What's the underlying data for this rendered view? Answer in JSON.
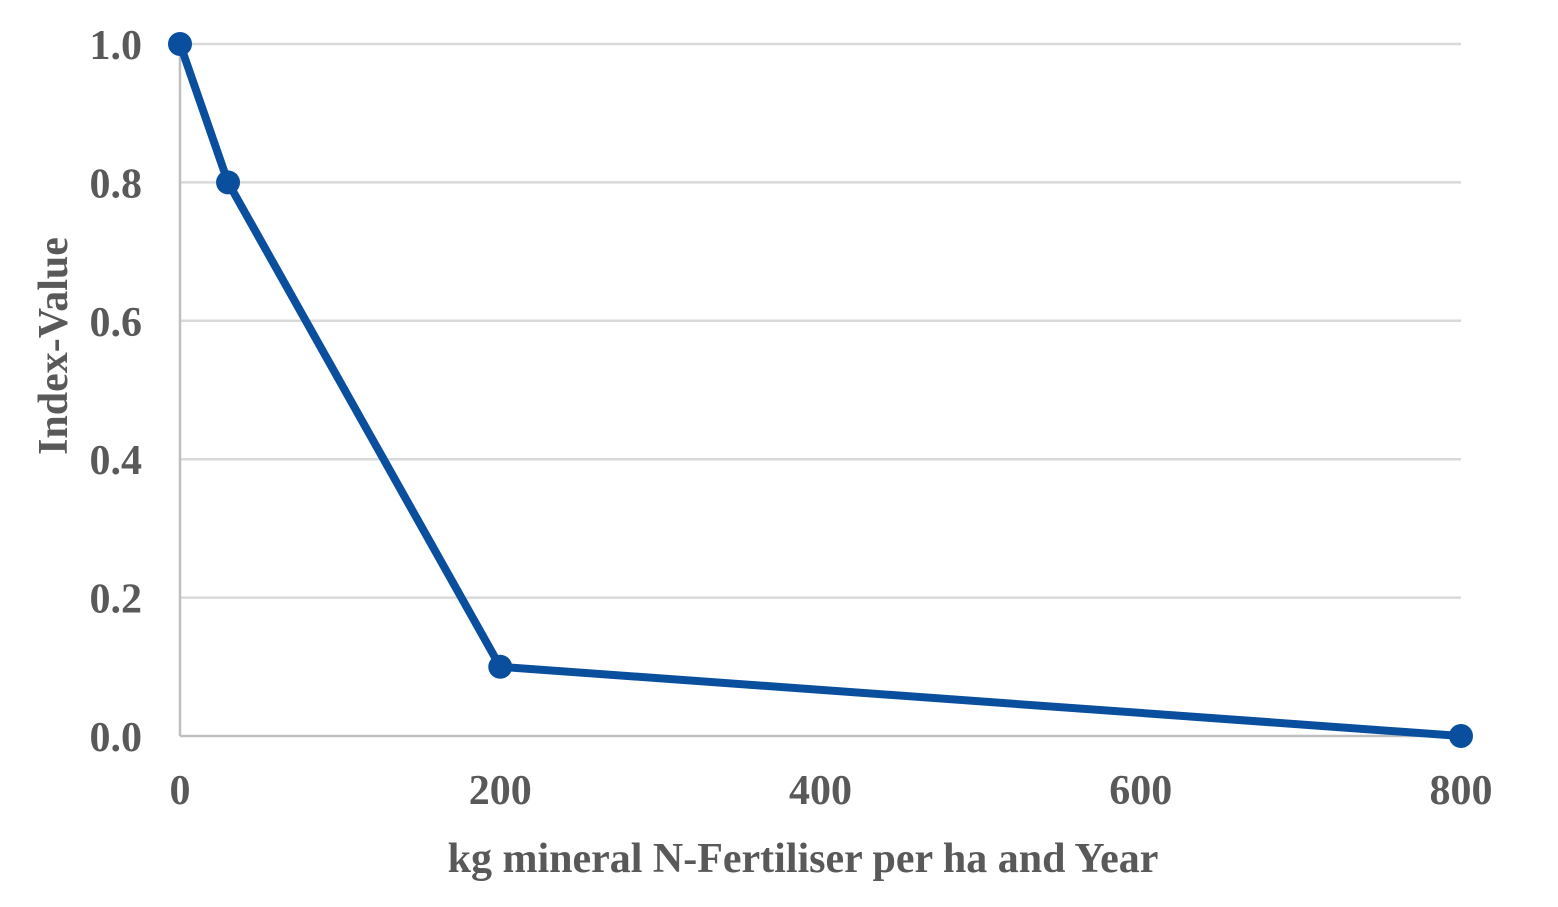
{
  "chart_data": {
    "type": "line",
    "title": "",
    "xlabel": "kg mineral N-Fertiliser per ha and Year",
    "ylabel": "Index-Value",
    "xlim": [
      0,
      800
    ],
    "ylim": [
      0,
      1.0
    ],
    "x_ticks": [
      0,
      200,
      400,
      600,
      800
    ],
    "y_ticks": [
      0.0,
      0.2,
      0.4,
      0.6,
      0.8,
      1.0
    ],
    "x_tick_labels": [
      "0",
      "200",
      "400",
      "600",
      "800"
    ],
    "y_tick_labels": [
      "0.0",
      "0.2",
      "0.4",
      "0.6",
      "0.8",
      "1.0"
    ],
    "grid": "horizontal",
    "legend": "none",
    "series": [
      {
        "color": "#0a4f9e",
        "x": [
          0,
          30,
          200,
          800
        ],
        "y": [
          1.0,
          0.8,
          0.1,
          0.0
        ]
      }
    ]
  }
}
